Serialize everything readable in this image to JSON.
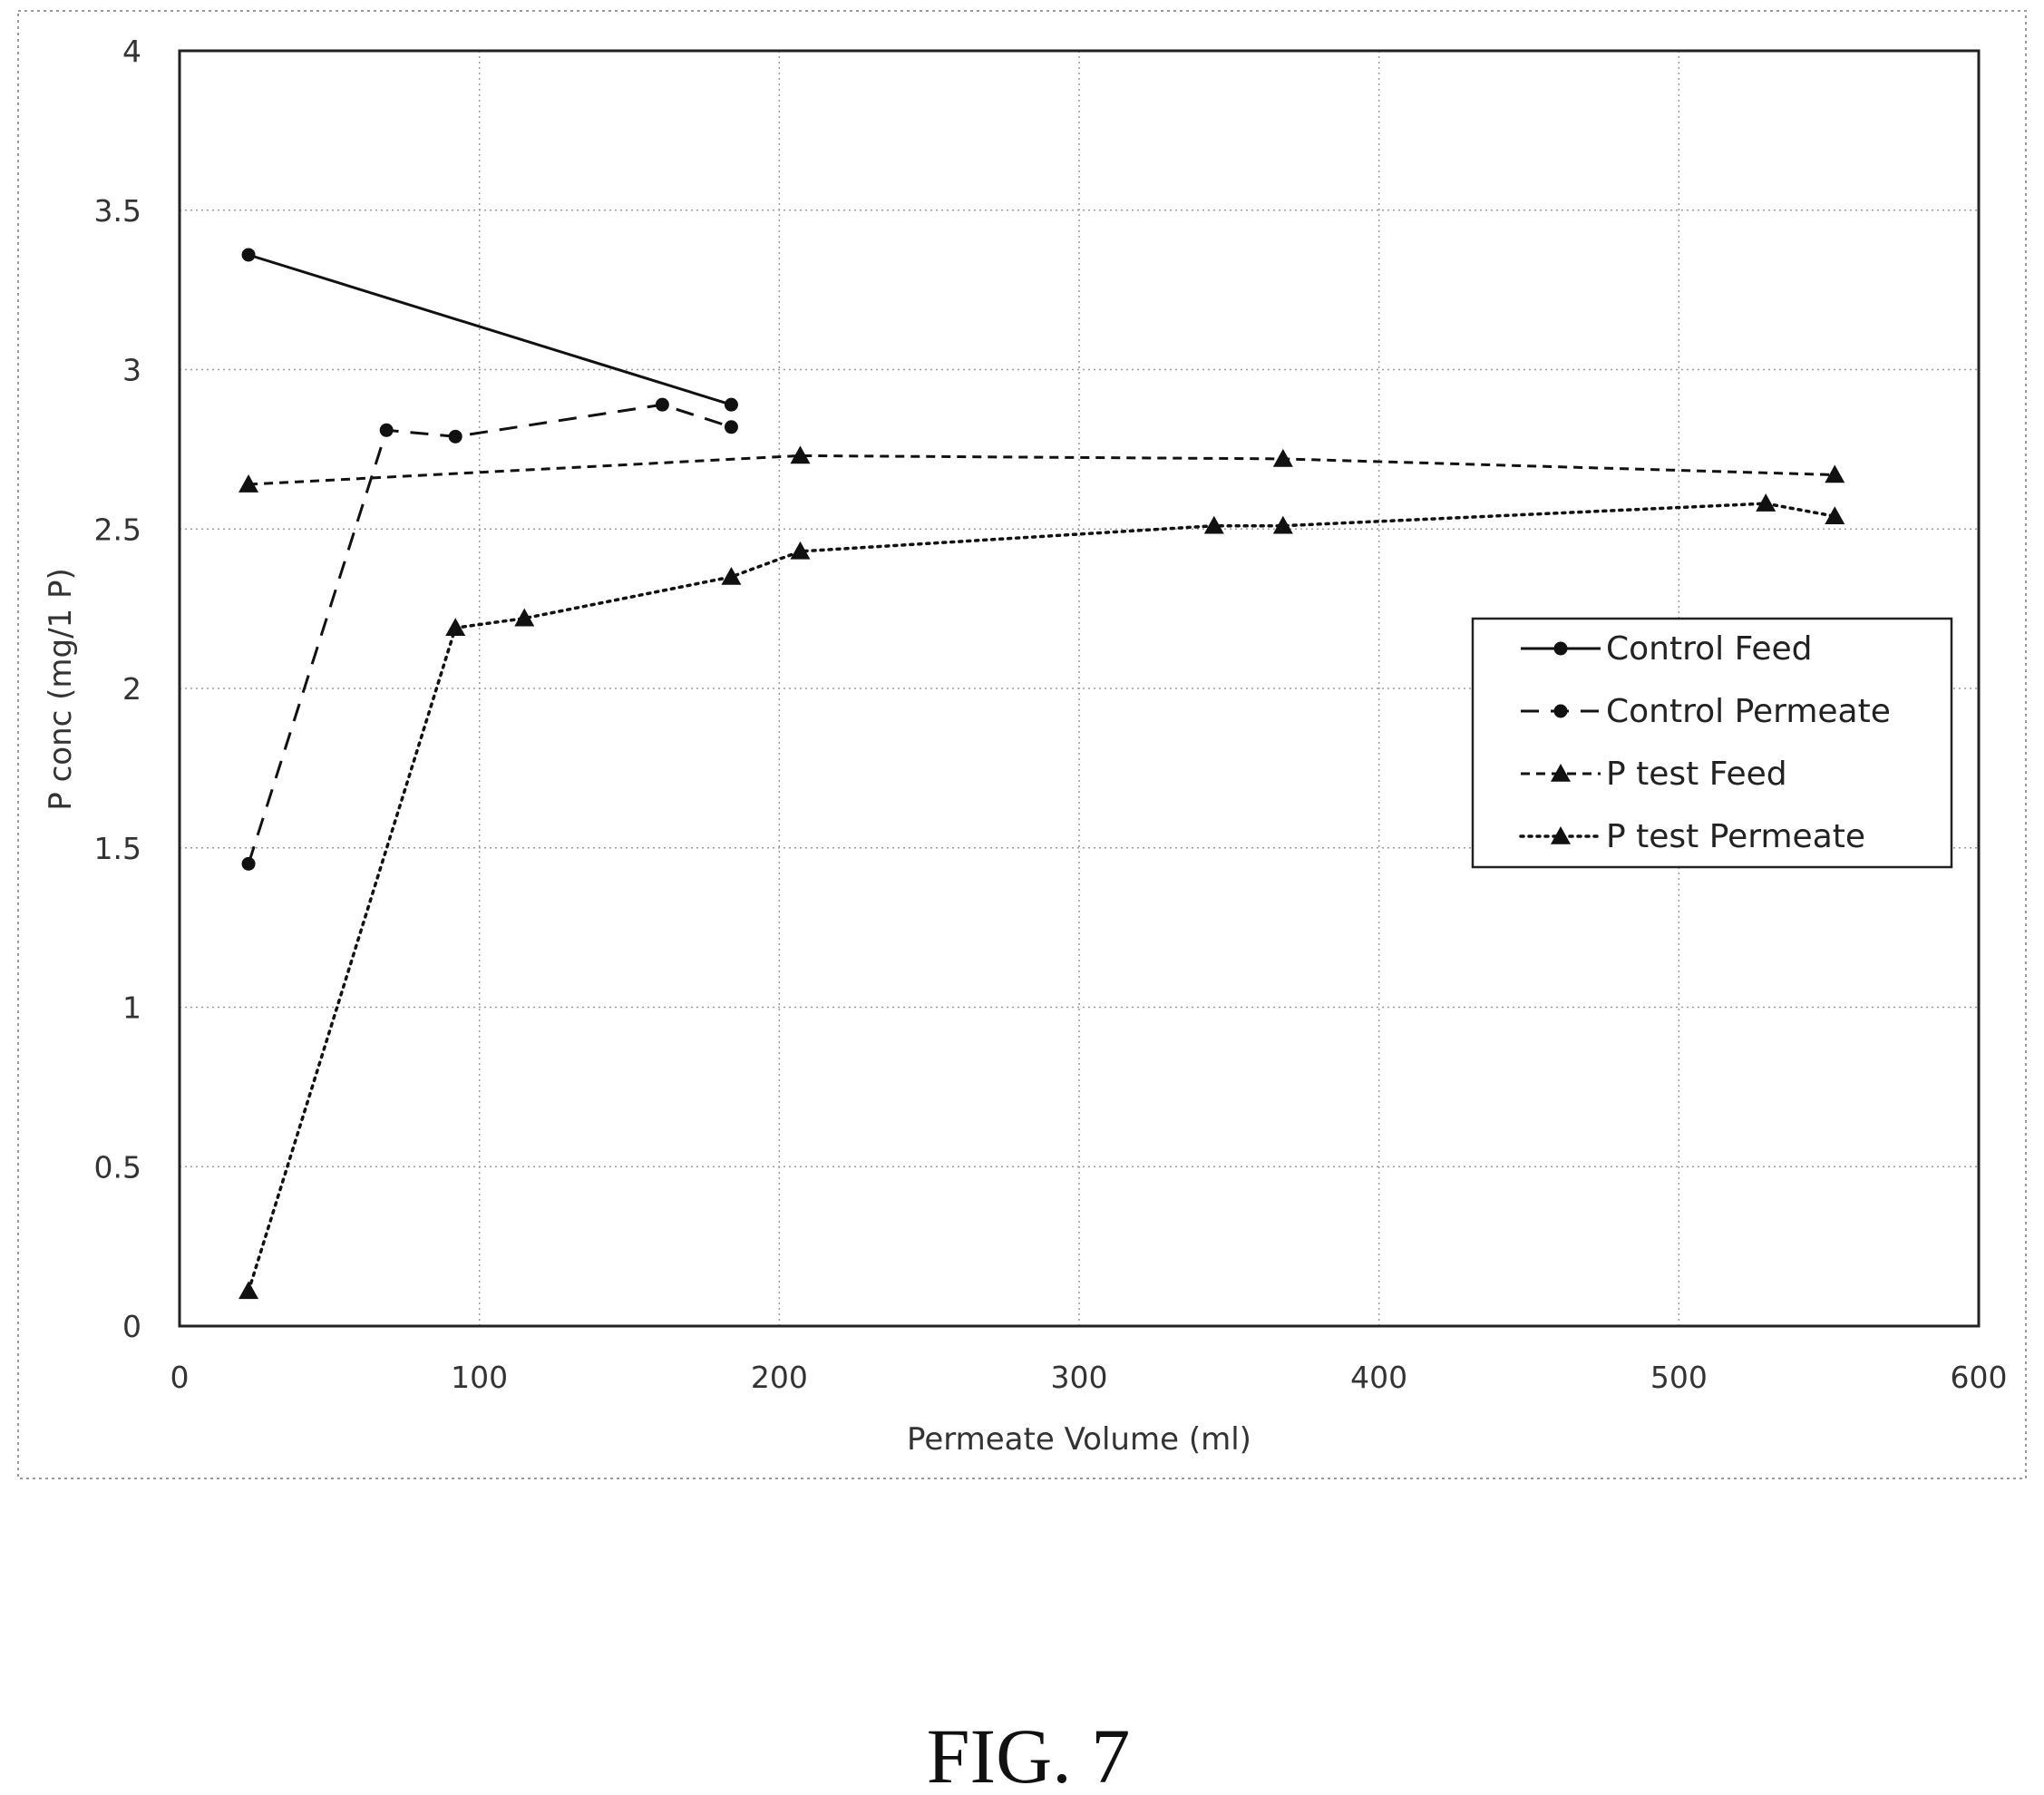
{
  "figure_label": "FIG. 7",
  "chart_data": {
    "type": "line",
    "title": "",
    "xlabel": "Permeate Volume (ml)",
    "ylabel": "P conc (mg/1 P)",
    "xlim": [
      0,
      600
    ],
    "ylim": [
      0,
      4
    ],
    "xticks": [
      0,
      100,
      200,
      300,
      400,
      500,
      600
    ],
    "yticks": [
      0,
      0.5,
      1,
      1.5,
      2,
      2.5,
      3,
      3.5,
      4
    ],
    "xtick_labels": [
      "0",
      "100",
      "200",
      "300",
      "400",
      "500",
      "600"
    ],
    "ytick_labels": [
      "0",
      "0.5",
      "1",
      "1.5",
      "2",
      "2.5",
      "3",
      "3.5",
      "4"
    ],
    "grid": true,
    "legend_position": "right",
    "series": [
      {
        "name": "Control Feed",
        "line": "solid",
        "marker": "circle",
        "x": [
          23,
          184
        ],
        "y": [
          3.36,
          2.89
        ]
      },
      {
        "name": "Control Permeate",
        "line": "dashed",
        "marker": "circle",
        "x": [
          23,
          69,
          92,
          161,
          184
        ],
        "y": [
          1.45,
          2.81,
          2.79,
          2.89,
          2.82
        ]
      },
      {
        "name": "P test Feed",
        "line": "dashed-fine",
        "marker": "triangle",
        "x": [
          23,
          207,
          368,
          552
        ],
        "y": [
          2.64,
          2.73,
          2.72,
          2.67
        ]
      },
      {
        "name": "P test Permeate",
        "line": "dotted",
        "marker": "triangle",
        "x": [
          23,
          92,
          115,
          184,
          207,
          345,
          368,
          529,
          552
        ],
        "y": [
          0.11,
          2.19,
          2.22,
          2.35,
          2.43,
          2.51,
          2.51,
          2.58,
          2.54
        ]
      }
    ]
  }
}
